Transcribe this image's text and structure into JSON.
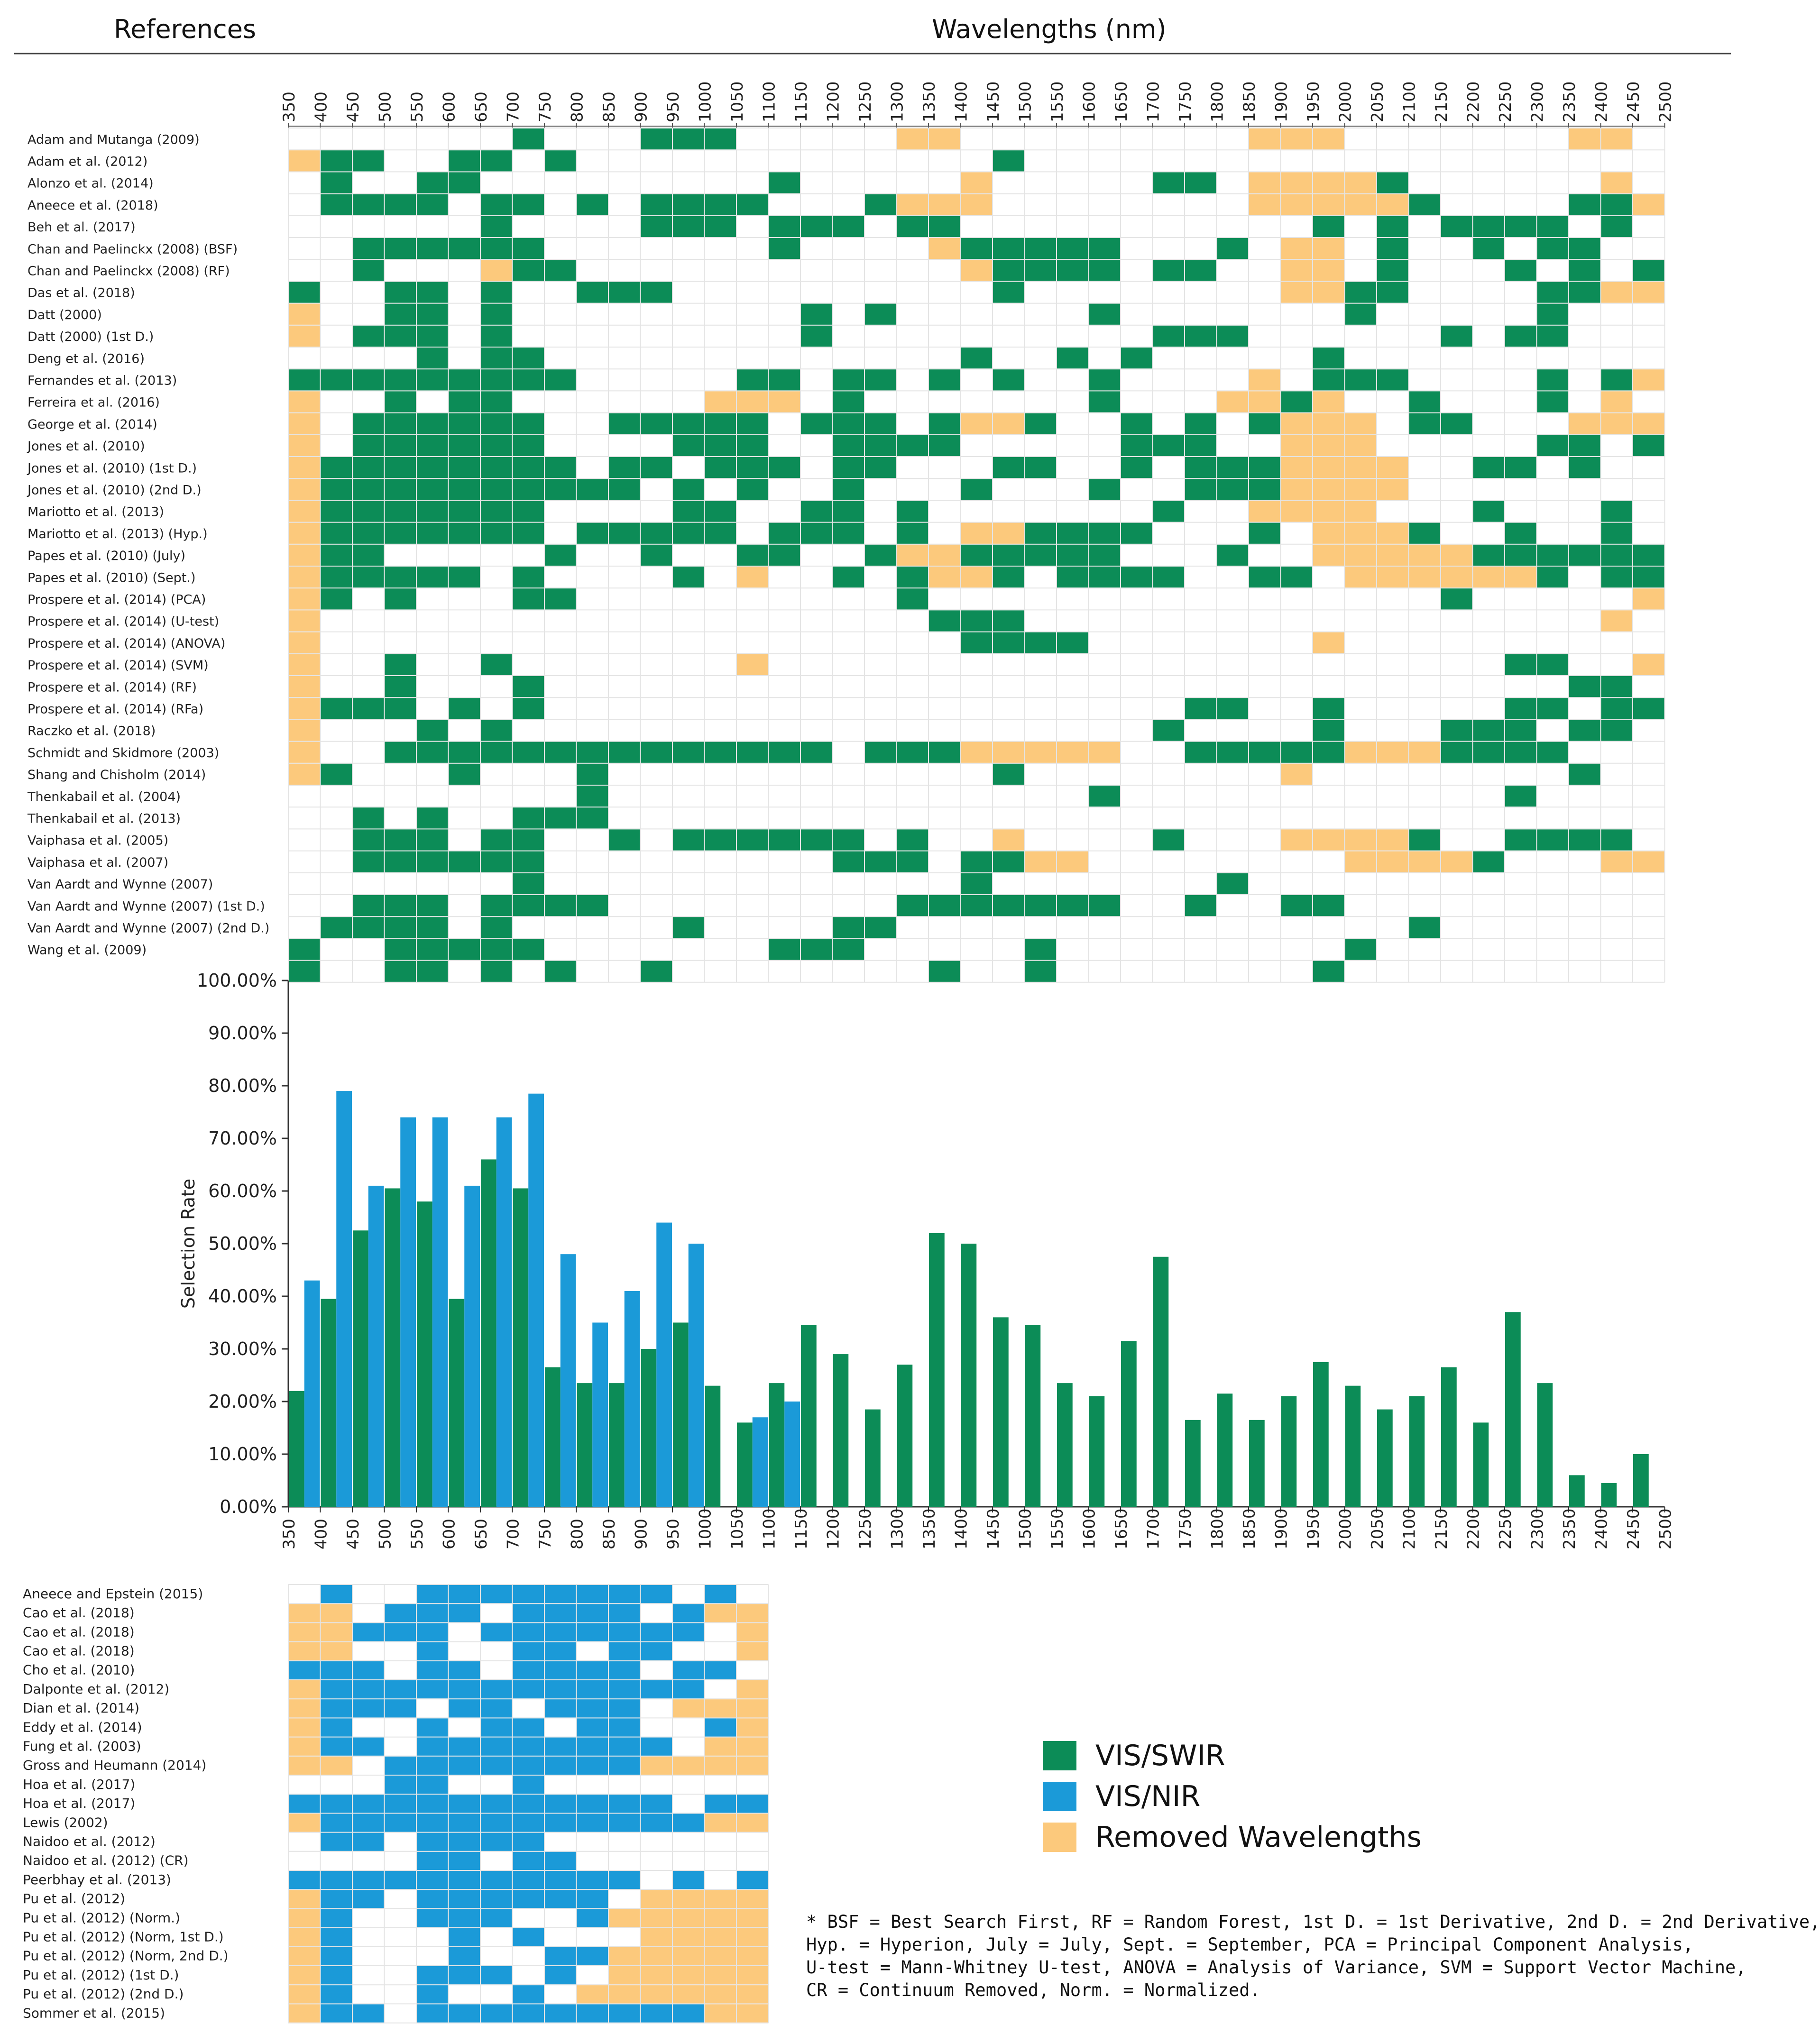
{
  "headers": {
    "references": "References",
    "wavelengths": "Wavelengths (nm)"
  },
  "legend": [
    {
      "label": "VIS/SWIR",
      "color": "#0c8c57"
    },
    {
      "label": "VIS/NIR",
      "color": "#1b9ad8"
    },
    {
      "label": "Removed Wavelengths",
      "color": "#fcc97c"
    }
  ],
  "footnote": [
    "* BSF = Best Search First, RF = Random Forest, 1st D. = 1st Derivative, 2nd D. = 2nd Derivative,",
    "Hyp. = Hyperion, July = July, Sept. = September, PCA = Principal Component Analysis,",
    "U-test = Mann-Whitney U-test, ANOVA = Analysis of Variance, SVM = Support Vector Machine,",
    "CR = Continuum Removed, Norm. = Normalized."
  ],
  "wavelength_labels": [
    "350",
    "400",
    "450",
    "500",
    "550",
    "600",
    "650",
    "700",
    "750",
    "800",
    "850",
    "900",
    "950",
    "1000",
    "1050",
    "1100",
    "1150",
    "1200",
    "1250",
    "1300",
    "1350",
    "1400",
    "1450",
    "1500",
    "1550",
    "1600",
    "1650",
    "1700",
    "1750",
    "1800",
    "1850",
    "1900",
    "1950",
    "2000",
    "2050",
    "2100",
    "2150",
    "2200",
    "2250",
    "2300",
    "2350",
    "2400",
    "2450",
    "2500"
  ],
  "chart_data": {
    "type": "bar",
    "ylabel": "Selection Rate",
    "ylim": [
      0,
      100
    ],
    "yticks": [
      "0.00%",
      "10.00%",
      "20.00%",
      "30.00%",
      "40.00%",
      "50.00%",
      "60.00%",
      "70.00%",
      "80.00%",
      "90.00%",
      "100.00%"
    ],
    "categories": [
      "350",
      "400",
      "450",
      "500",
      "550",
      "600",
      "650",
      "700",
      "750",
      "800",
      "850",
      "900",
      "950",
      "1000",
      "1050",
      "1100",
      "1150",
      "1200",
      "1250",
      "1300",
      "1350",
      "1400",
      "1450",
      "1500",
      "1550",
      "1600",
      "1650",
      "1700",
      "1750",
      "1800",
      "1850",
      "1900",
      "1950",
      "2000",
      "2050",
      "2100",
      "2150",
      "2200",
      "2250",
      "2300",
      "2350",
      "2400",
      "2450"
    ],
    "series": [
      {
        "name": "VIS/SWIR",
        "color": "#0c8c57",
        "values": [
          22,
          39.5,
          52.5,
          60.5,
          58,
          39.5,
          66,
          60.5,
          26.5,
          23.5,
          23.5,
          30,
          35,
          23,
          16,
          23.5,
          34.5,
          29,
          18.5,
          27,
          52,
          50,
          36,
          34.5,
          23.5,
          21,
          31.5,
          47.5,
          16.5,
          21.5,
          16.5,
          21,
          27.5,
          23,
          18.5,
          21,
          26.5,
          16,
          37,
          23.5,
          6,
          4.5,
          10
        ]
      },
      {
        "name": "VIS/NIR",
        "color": "#1b9ad8",
        "values": [
          43,
          79,
          61,
          74,
          74,
          61,
          74,
          78.5,
          48,
          35,
          41,
          54,
          50,
          null,
          17,
          20,
          null,
          null,
          null,
          null,
          null,
          null,
          null,
          null,
          null,
          null,
          null,
          null,
          null,
          null,
          null,
          null,
          null,
          null,
          null,
          null,
          null,
          null,
          null,
          null,
          null,
          null,
          null
        ]
      }
    ]
  },
  "swir_matrix": {
    "references": [
      "Adam and Mutanga (2009)",
      "Adam et al. (2012)",
      "Alonzo et al. (2014)",
      "Aneece et al. (2018)",
      "Beh et al. (2017)",
      "Chan and Paelinckx (2008) (BSF)",
      "Chan and Paelinckx (2008) (RF)",
      "Das et al. (2018)",
      "Datt (2000)",
      "Datt (2000) (1st D.)",
      "Deng et al. (2016)",
      "Fernandes et al. (2013)",
      "Ferreira et al. (2016)",
      "George et al. (2014)",
      "Jones et al. (2010)",
      "Jones et al. (2010) (1st D.)",
      "Jones et al. (2010) (2nd D.)",
      "Mariotto et al. (2013)",
      "Mariotto et al. (2013) (Hyp.)",
      "Papes et al. (2010) (July)",
      "Papes et al. (2010) (Sept.)",
      "Prospere et al. (2014) (PCA)",
      "Prospere et al. (2014) (U-test)",
      "Prospere et al. (2014) (ANOVA)",
      "Prospere et al. (2014) (SVM)",
      "Prospere et al. (2014) (RF)",
      "Prospere et al. (2014) (RFa)",
      "Raczko et al. (2018)",
      "Schmidt and Skidmore (2003)",
      "Shang and Chisholm (2014)",
      "Thenkabail et al. (2004)",
      "Thenkabail et al. (2013)",
      "Vaiphasa et al. (2005)",
      "Vaiphasa et al. (2007)",
      "Van Aardt and Wynne (2007)",
      "Van Aardt and Wynne (2007) (1st D.)",
      "Van Aardt and Wynne (2007) (2nd D.)",
      "Wang et al. (2009)"
    ],
    "rows": [
      "0000000G000GGG00000RR000000000RRR0000000RR",
      "RGG00GG0G0000000000000G00000000000000000000",
      "0G00GG000000000G00000R00000GG0RRRRG000000R",
      "0GGGG0GG0G0GGGG000GRRR00000000RRRRRG0000GGRR",
      "000000G0000GGG0GGG0GG00000000000G0G0GGGG0G",
      "00GGGGGG0000000G0000RGGGGG000G0RR0G00G0GG0",
      "00G000RGG000000000000RGGGG0GG00RR0G000G0G0G",
      "G00GG0G00GGG0000000000G00000000RRGG0000GGRRRR",
      "R00GG0G000000000G0G000000G0000000G00000G00",
      "R0GGG0G000000000G0000000000GGG000000G0GG000",
      "0000G0GG0000000000000G00G0G00000G00000000",
      "GGGGGGGGG00000GG0GG0G0G00G0000R0GGG0000G0GR",
      "R00G0GG000000RRR0G0000000G000RRGR00G000G0R",
      "R0GGGGGG00GGGGG0GGG0GRRG00G0G0GRRR0GG000RRR",
      "R0GGGGGG0000GGG00GGGG00000GGG00RRR00000GG0G",
      "RGGGGGGGG0GG0GGG0GG000GG00G0GGGRRRR00GG0G0",
      "RGGGGGGGGGG0G0G00G000G000G00GGGRRRR00000000",
      "RGGGGGGG0000GG00GG0G0000000G00RRRR000G000G0",
      "RGGGGGGG0GGGGG0GGG0G0RRGGGG000G0RRRG00G00G0",
      "RGG00000G00G00GG00GRRGGGGG000G00RRRRRGGGGGG0",
      "RGGGGG0G0000G0R00G0GRRG0GGGG00GG0RRRRRRG0GGRRR",
      "RG0G000GG0000000000G0000000000000000G00000R",
      "R0000000000000000000GGG000000000000000000R",
      "R00000000000000000000GGGG0000000R0000000000R",
      "R00G00G0000000R00000000000000000000000GG00R",
      "R00G000G00000000000000000000000000000000GG0R",
      "RGGG0G0G00000000000000000000GG00G00000GG0GGR",
      "R000G0G00000000000000000000G0000G000GGG0GG0R",
      "R00GGGGGGGGGGGGGG0GGGRRRRR00GGGGGRRRGGGG00000R",
      "RG000G000G000000000000G00000000R00000000G00",
      "000000000G000000000000000G000000000000G0000",
      "00G0G00GGG000000000000000000000000000000000G",
      "00GGG0GG00G0GGGGGG0G00R0000G000RRRRG00GGGG0RR",
      "00GGGGGG000000000GGG0GGRR00000000RRRRG000RRRR",
      "0000000G0000000000000G0000000G00000000000000",
      "00GGG0GGGG000000000GGGGGGG00G00GG00000000000",
      "0GGGG0G00000G0000GG0000000000000000G00000000",
      "G00GGGGG0000000GGG00000G000000000G0000000000",
      "G00GG0G0G00G00000000G00G00000000G0000000000"
    ]
  },
  "nir_matrix": {
    "references": [
      "Aneece and Epstein (2015)",
      "Cao et al. (2018)",
      "Cao et al. (2018)",
      "Cao et al. (2018)",
      "Cho et al. (2010)",
      "Dalponte et al. (2012)",
      "Dian et al. (2014)",
      "Eddy et al. (2014)",
      "Fung et al. (2003)",
      "Gross and Heumann (2014)",
      "Hoa et al. (2017)",
      "Hoa et al. (2017)",
      "Lewis (2002)",
      "Naidoo et al. (2012)",
      "Naidoo et al. (2012) (CR)",
      "Peerbhay et al. (2013)",
      "Pu et al. (2012)",
      "Pu et al. (2012) (Norm.)",
      "Pu et al. (2012) (Norm, 1st D.)",
      "Pu et al. (2012) (Norm, 2nd D.)",
      "Pu et al. (2012) (1st D.)",
      "Pu et al. (2012) (2nd D.)",
      "Sommer et al. (2015)"
    ],
    "rows": [
      "0B00BBBBBBBB0B0R",
      "RR0BBB0BBBB0BRR",
      "RRBBB0BBBBBBB0RR",
      "RR00B00BB0BB00RR",
      "BBB0BB0BBBB0BB0R",
      "RBBBBBBBBBBBB0RR",
      "RBBB0BB0BBB0RRRR",
      "RB00B0BB0BB00BR",
      "RBB0BBBBBBBB0RRR",
      "RR0BBBBBBBBRRRRR",
      "000BB00B0000000",
      "BBBBBBBBBBBB0BBB",
      "RBBBBBBBBBBBBRRRR",
      "0BB0BBBB000000000",
      "0000BB0BB00000000",
      "BBBBBBBBBBB0B0BB",
      "RBB0BBBBBB0RRRRR",
      "RB00BBB00BRRRRRR",
      "RB000B0B000RRRRRR",
      "RB000B00BBRRRRRR",
      "RB00BBB0B0RRRRRR",
      "RB00B00B0RRRRRRR",
      "RBB0BBBBBBBBBRRRR"
    ]
  }
}
